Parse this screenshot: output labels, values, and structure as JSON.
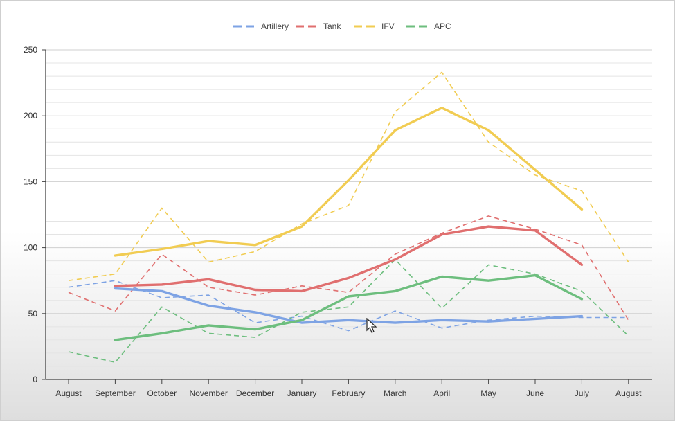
{
  "chart_data": {
    "type": "line",
    "title": "",
    "xlabel": "",
    "ylabel": "",
    "categories": [
      "August",
      "September",
      "October",
      "November",
      "December",
      "January",
      "February",
      "March",
      "April",
      "May",
      "June",
      "July",
      "August"
    ],
    "ylim": [
      0,
      250
    ],
    "yticks": [
      0,
      50,
      100,
      150,
      200,
      250
    ],
    "grid": true,
    "legend_position": "top-center",
    "series": [
      {
        "name": "Artillery",
        "color": "#7ea3e4",
        "dashed": [
          70,
          75,
          62,
          64,
          43,
          48,
          37,
          52,
          39,
          45,
          48,
          47,
          47
        ],
        "solid": [
          null,
          69,
          67,
          56,
          51,
          43,
          45,
          43,
          45,
          44,
          46,
          48,
          null
        ]
      },
      {
        "name": "Tank",
        "color": "#e06f6f",
        "dashed": [
          66,
          52,
          95,
          70,
          64,
          71,
          66,
          95,
          111,
          124,
          114,
          102,
          45
        ],
        "solid": [
          null,
          71,
          72,
          76,
          68,
          67,
          77,
          91,
          110,
          116,
          113,
          87,
          null
        ]
      },
      {
        "name": "IFV",
        "color": "#f1cc52",
        "dashed": [
          75,
          80,
          130,
          89,
          97,
          118,
          132,
          203,
          233,
          180,
          155,
          143,
          89
        ],
        "solid": [
          null,
          94,
          99,
          105,
          102,
          116,
          151,
          189,
          206,
          189,
          159,
          129,
          null
        ]
      },
      {
        "name": "APC",
        "color": "#6dbe7e",
        "dashed": [
          21,
          13,
          55,
          35,
          32,
          51,
          55,
          91,
          54,
          87,
          80,
          67,
          33
        ],
        "solid": [
          null,
          30,
          35,
          41,
          38,
          45,
          63,
          67,
          78,
          75,
          79,
          61,
          null
        ]
      }
    ]
  }
}
